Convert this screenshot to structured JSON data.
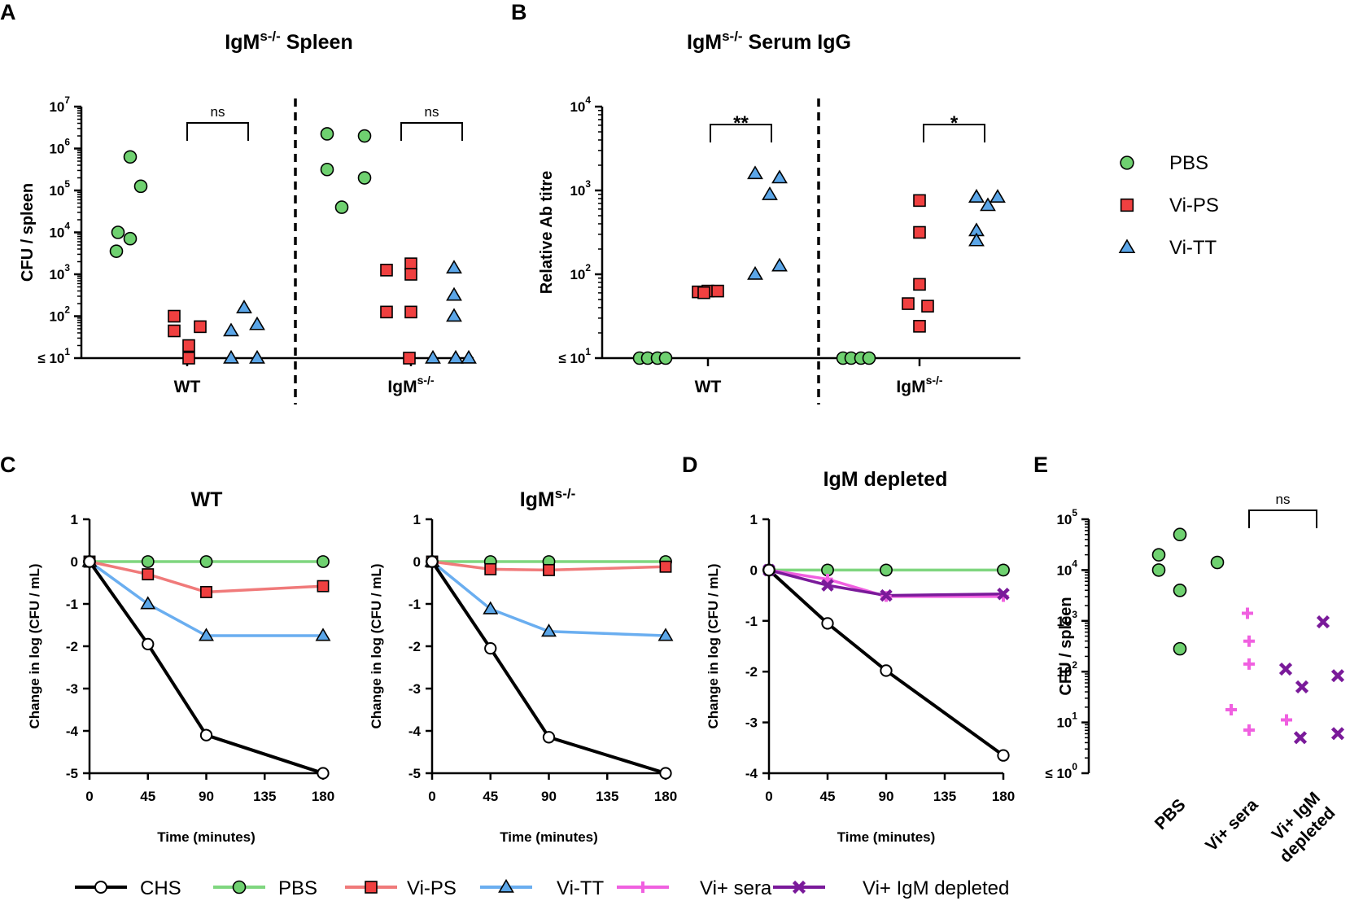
{
  "legend_top": [
    {
      "name": "PBS",
      "color": "#6fd170",
      "marker": "circle"
    },
    {
      "name": "Vi-PS",
      "color": "#f04040",
      "marker": "square"
    },
    {
      "name": "Vi-TT",
      "color": "#5ba6e8",
      "marker": "triangle"
    }
  ],
  "legend_bottom": [
    {
      "name": "CHS",
      "color": "#000000",
      "marker": "open-circle"
    },
    {
      "name": "PBS",
      "color": "#6fd170",
      "marker": "circle"
    },
    {
      "name": "Vi-PS",
      "color": "#f04040",
      "marker": "square"
    },
    {
      "name": "Vi-TT",
      "color": "#5ba6e8",
      "marker": "triangle"
    },
    {
      "name": "Vi+ sera",
      "color": "#f060e0",
      "marker": "plus"
    },
    {
      "name": "Vi+ IgM depleted",
      "color": "#7a1a9a",
      "marker": "cross"
    }
  ],
  "chart_data": [
    {
      "panel": "A",
      "type": "scatter",
      "scale": "log10",
      "title": "IgM",
      "title_sup": "s-/-",
      "title_rest": " Spleen",
      "ylabel": "CFU / spleen",
      "ylim": [
        1,
        7
      ],
      "ytick_labels": [
        "≤ 10",
        "10",
        "10",
        "10",
        "10",
        "10",
        "10"
      ],
      "ytick_exps": [
        "1",
        "2",
        "3",
        "4",
        "5",
        "6",
        "7"
      ],
      "groups": [
        {
          "label": "WT",
          "sup": "",
          "series": [
            {
              "name": "PBS",
              "values": [
                4.0,
                3.55,
                5.1,
                5.8,
                3.85
              ]
            },
            {
              "name": "Vi-PS",
              "values": [
                2.0,
                1.65,
                1.3,
                1.0,
                1.75
              ]
            },
            {
              "name": "Vi-TT",
              "values": [
                1.0,
                1.65,
                2.2,
                1.0,
                1.8
              ]
            }
          ],
          "sig": "ns"
        },
        {
          "label": "IgM",
          "sup": "s-/-",
          "series": [
            {
              "name": "PBS",
              "values": [
                5.5,
                6.35,
                4.6,
                6.3,
                5.3
              ]
            },
            {
              "name": "Vi-PS",
              "values": [
                3.1,
                2.1,
                1.0,
                3.25,
                3.0,
                2.1
              ]
            },
            {
              "name": "Vi-TT",
              "values": [
                1.0,
                3.15,
                2.5,
                2.0,
                1.0,
                1.0
              ]
            }
          ],
          "sig": "ns"
        }
      ]
    },
    {
      "panel": "B",
      "type": "scatter",
      "scale": "log10",
      "title": "IgM",
      "title_sup": "s-/-",
      "title_rest": " Serum IgG",
      "ylabel": "Relative Ab titre",
      "ylim": [
        1,
        4
      ],
      "ytick_labels": [
        "≤ 10",
        "10",
        "10",
        "10"
      ],
      "ytick_exps": [
        "1",
        "2",
        "3",
        "4"
      ],
      "groups": [
        {
          "label": "WT",
          "sup": "",
          "series": [
            {
              "name": "PBS",
              "values": [
                1,
                1,
                1,
                1
              ]
            },
            {
              "name": "Vi-PS",
              "values": [
                1.79,
                1.8,
                1.8,
                1.78
              ]
            },
            {
              "name": "Vi-TT",
              "values": [
                2.0,
                3.2,
                2.95,
                2.1,
                3.15
              ]
            }
          ],
          "sig": "**"
        },
        {
          "label": "IgM",
          "sup": "s-/-",
          "series": [
            {
              "name": "PBS",
              "values": [
                1,
                1,
                1,
                1
              ]
            },
            {
              "name": "Vi-PS",
              "values": [
                1.65,
                1.38,
                2.88,
                2.5,
                1.88,
                1.62
              ]
            },
            {
              "name": "Vi-TT",
              "values": [
                2.92,
                2.52,
                2.4,
                2.92,
                2.82,
                2.92
              ]
            }
          ],
          "sig": "*"
        }
      ]
    },
    {
      "panel": "C",
      "type": "line",
      "title": "WT",
      "title_sup": "",
      "xlabel": "Time (minutes)",
      "ylabel": "Change in log (CFU / mL)",
      "x": [
        0,
        45,
        90,
        135,
        180
      ],
      "xlim": [
        0,
        180
      ],
      "ylim": [
        -5,
        1
      ],
      "yticks": [
        "1",
        "0",
        "-1",
        "-2",
        "-3",
        "-4",
        "-5"
      ],
      "xticks": [
        "0",
        "45",
        "90",
        "135",
        "180"
      ],
      "series": [
        {
          "name": "PBS",
          "x": [
            0,
            45,
            90,
            180
          ],
          "y": [
            0,
            0,
            0,
            0
          ]
        },
        {
          "name": "Vi-PS",
          "x": [
            0,
            45,
            90,
            180
          ],
          "y": [
            0,
            -0.3,
            -0.72,
            -0.58
          ]
        },
        {
          "name": "Vi-TT",
          "x": [
            0,
            45,
            90,
            180
          ],
          "y": [
            0,
            -1.0,
            -1.75,
            -1.75
          ]
        },
        {
          "name": "CHS",
          "x": [
            0,
            45,
            90,
            180
          ],
          "y": [
            0,
            -1.95,
            -4.1,
            -5.0
          ]
        }
      ]
    },
    {
      "panel": "C2",
      "type": "line",
      "title": "IgM",
      "title_sup": "s-/-",
      "xlabel": "Time (minutes)",
      "ylabel": "Change in log (CFU / mL)",
      "x": [
        0,
        45,
        90,
        135,
        180
      ],
      "xlim": [
        0,
        180
      ],
      "ylim": [
        -5,
        1
      ],
      "yticks": [
        "1",
        "0",
        "-1",
        "-2",
        "-3",
        "-4",
        "-5"
      ],
      "xticks": [
        "0",
        "45",
        "90",
        "135",
        "180"
      ],
      "series": [
        {
          "name": "PBS",
          "x": [
            0,
            45,
            90,
            180
          ],
          "y": [
            0,
            0,
            0,
            0
          ]
        },
        {
          "name": "Vi-PS",
          "x": [
            0,
            45,
            90,
            180
          ],
          "y": [
            0,
            -0.18,
            -0.2,
            -0.12
          ]
        },
        {
          "name": "Vi-TT",
          "x": [
            0,
            45,
            90,
            180
          ],
          "y": [
            0,
            -1.12,
            -1.65,
            -1.75
          ]
        },
        {
          "name": "CHS",
          "x": [
            0,
            45,
            90,
            180
          ],
          "y": [
            0,
            -2.05,
            -4.15,
            -5.0
          ]
        }
      ]
    },
    {
      "panel": "D",
      "type": "line",
      "title": "IgM depleted",
      "title_sup": "",
      "xlabel": "Time (minutes)",
      "ylabel": "Change in log (CFU / mL)",
      "x": [
        0,
        45,
        90,
        135,
        180
      ],
      "xlim": [
        0,
        180
      ],
      "ylim": [
        -4,
        1
      ],
      "yticks": [
        "1",
        "0",
        "-1",
        "-2",
        "-3",
        "-4"
      ],
      "xticks": [
        "0",
        "45",
        "90",
        "135",
        "180"
      ],
      "series": [
        {
          "name": "PBS",
          "x": [
            0,
            45,
            90,
            180
          ],
          "y": [
            0,
            0,
            0,
            0
          ]
        },
        {
          "name": "Vi+ sera",
          "x": [
            0,
            45,
            90,
            180
          ],
          "y": [
            0,
            -0.18,
            -0.52,
            -0.52
          ]
        },
        {
          "name": "Vi+ IgM depleted",
          "x": [
            0,
            45,
            90,
            180
          ],
          "y": [
            0,
            -0.3,
            -0.5,
            -0.47
          ]
        },
        {
          "name": "CHS",
          "x": [
            0,
            45,
            90,
            180
          ],
          "y": [
            0,
            -1.05,
            -1.98,
            -3.65
          ]
        }
      ]
    },
    {
      "panel": "E",
      "type": "scatter",
      "scale": "log10",
      "ylabel": "CFU / spleen",
      "ylim": [
        0,
        5
      ],
      "ytick_labels": [
        "≤ 10",
        "10",
        "10",
        "10",
        "10",
        "10"
      ],
      "ytick_exps": [
        "0",
        "1",
        "2",
        "3",
        "4",
        "5"
      ],
      "categories": [
        "PBS",
        "Vi+ sera",
        "Vi+ IgM\ndepleted"
      ],
      "series": [
        {
          "name": "PBS",
          "category": "PBS",
          "values": [
            4.3,
            4.0,
            4.7,
            3.6,
            2.45,
            4.15
          ]
        },
        {
          "name": "Vi+ sera",
          "category": "Vi+ sera",
          "values": [
            1.25,
            3.15,
            2.6,
            2.15,
            0.85,
            1.05
          ]
        },
        {
          "name": "Vi+ IgM depleted",
          "category": "Vi+ IgM\ndepleted",
          "values": [
            2.05,
            1.7,
            0.7,
            2.98,
            1.92,
            0.78
          ]
        }
      ],
      "sig": "ns"
    }
  ]
}
